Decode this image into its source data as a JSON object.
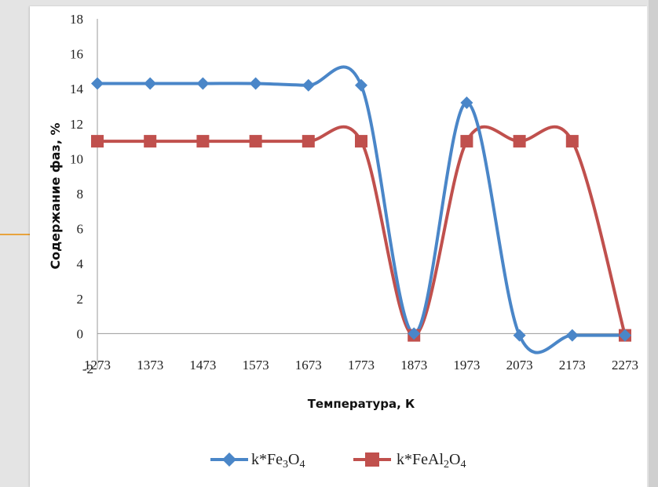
{
  "chart_data": {
    "type": "line",
    "title": "",
    "xlabel": "Температура, К",
    "ylabel": "Содержание фаз, %",
    "ylim": [
      -2,
      18
    ],
    "y_ticks": [
      "-2",
      "0",
      "2",
      "4",
      "6",
      "8",
      "10",
      "12",
      "14",
      "16",
      "18"
    ],
    "x": [
      1273,
      1373,
      1473,
      1573,
      1673,
      1773,
      1873,
      1973,
      2073,
      2173,
      2273
    ],
    "categories": [
      "1273",
      "1373",
      "1473",
      "1573",
      "1673",
      "1773",
      "1873",
      "1973",
      "2073",
      "2173",
      "2273"
    ],
    "smooth": true,
    "grid": false,
    "legend_position": "bottom",
    "series": [
      {
        "name": "k*Fe3O4",
        "name_parts": [
          "k*Fe",
          "3",
          "O",
          "4"
        ],
        "color": "#4a86c8",
        "marker": "diamond",
        "values": [
          14.3,
          14.3,
          14.3,
          14.3,
          14.2,
          14.2,
          0,
          13.2,
          -0.1,
          -0.1,
          -0.1
        ]
      },
      {
        "name": "k*FeAl2O4",
        "name_parts": [
          "k*FeAl",
          "2",
          "O",
          "4"
        ],
        "color": "#c0504d",
        "marker": "square",
        "values": [
          11,
          11,
          11,
          11,
          11,
          11,
          -0.1,
          11,
          11,
          11,
          -0.1
        ]
      }
    ]
  }
}
